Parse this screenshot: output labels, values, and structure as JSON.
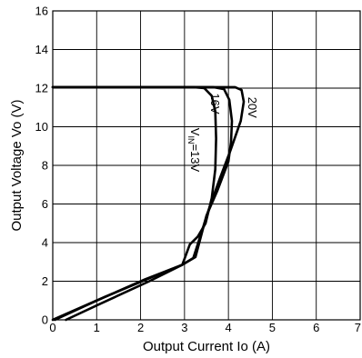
{
  "chart_data": {
    "type": "line",
    "xlabel": "Output Current Io (A)",
    "ylabel": "Output Voltage Vo (V)",
    "xlim": [
      0,
      7
    ],
    "ylim": [
      0,
      16
    ],
    "xticks": [
      0,
      1,
      2,
      3,
      4,
      5,
      6,
      7
    ],
    "yticks": [
      0,
      2,
      4,
      6,
      8,
      10,
      12,
      14,
      16
    ],
    "grid": true,
    "series": [
      {
        "name": "V",
        "name_sub": "IN",
        "name_rest": "=13V",
        "label_anchor": [
          3.15,
          8.8
        ],
        "points": [
          [
            0,
            12.05
          ],
          [
            3.2,
            12.05
          ],
          [
            3.45,
            12.0
          ],
          [
            3.62,
            11.6
          ],
          [
            3.7,
            10.8
          ],
          [
            3.72,
            9.4
          ],
          [
            3.7,
            7.8
          ],
          [
            3.62,
            6.3
          ],
          [
            3.48,
            5.0
          ],
          [
            3.3,
            4.3
          ],
          [
            3.12,
            3.9
          ],
          [
            2.95,
            2.85
          ],
          [
            2.3,
            2.25
          ],
          [
            1.2,
            1.2
          ],
          [
            0,
            0
          ]
        ]
      },
      {
        "name": "16V",
        "label_anchor": [
          3.6,
          11.2
        ],
        "points": [
          [
            0,
            12.05
          ],
          [
            3.65,
            12.05
          ],
          [
            3.9,
            11.95
          ],
          [
            4.02,
            11.4
          ],
          [
            4.08,
            10.3
          ],
          [
            4.06,
            9.2
          ],
          [
            4.0,
            8.2
          ],
          [
            3.75,
            6.7
          ],
          [
            3.5,
            5.4
          ],
          [
            3.25,
            3.25
          ],
          [
            2.95,
            2.85
          ],
          [
            2.1,
            2.1
          ],
          [
            1.0,
            1.0
          ],
          [
            0.05,
            0
          ]
        ]
      },
      {
        "name": "20V",
        "label_anchor": [
          4.45,
          11.0
        ],
        "points": [
          [
            0,
            12.05
          ],
          [
            4.15,
            12.05
          ],
          [
            4.3,
            11.9
          ],
          [
            4.35,
            11.3
          ],
          [
            4.28,
            10.3
          ],
          [
            4.05,
            8.8
          ],
          [
            3.8,
            7.3
          ],
          [
            3.55,
            5.7
          ],
          [
            3.3,
            3.9
          ],
          [
            3.2,
            3.2
          ],
          [
            2.95,
            2.85
          ],
          [
            2.2,
            2.0
          ],
          [
            1.1,
            0.85
          ],
          [
            0.3,
            0
          ]
        ]
      }
    ]
  }
}
